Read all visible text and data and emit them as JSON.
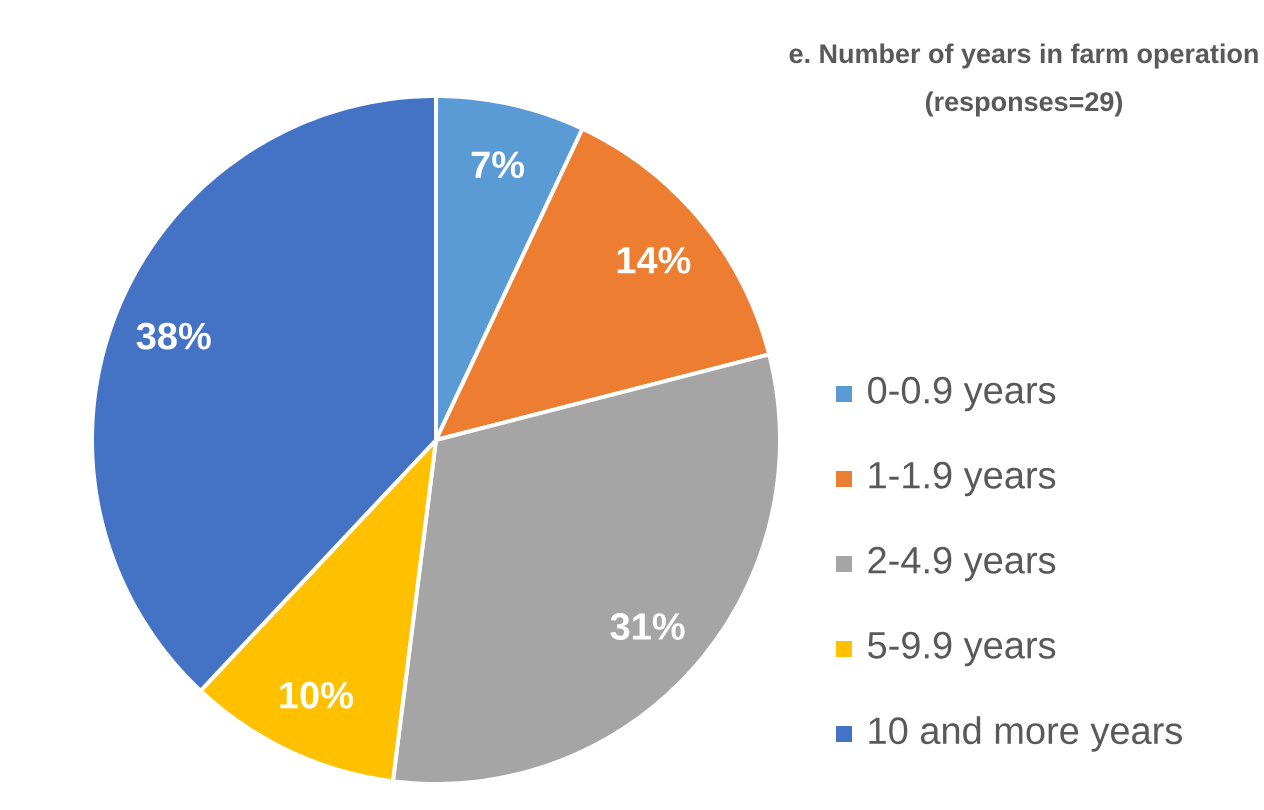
{
  "chart_data": {
    "type": "pie",
    "title": "e. Number of years in farm operation",
    "subtitle": "(responses=29)",
    "categories": [
      "0-0.9 years",
      "1-1.9 years",
      "2-4.9 years",
      "5-9.9 years",
      "10 and more years"
    ],
    "values": [
      7,
      14,
      31,
      10,
      38
    ],
    "value_labels": [
      "7%",
      "14%",
      "31%",
      "10%",
      "38%"
    ],
    "colors": [
      "#5b9bd5",
      "#ed7d31",
      "#a5a5a5",
      "#ffc000",
      "#4472c4"
    ],
    "legend": "right"
  }
}
